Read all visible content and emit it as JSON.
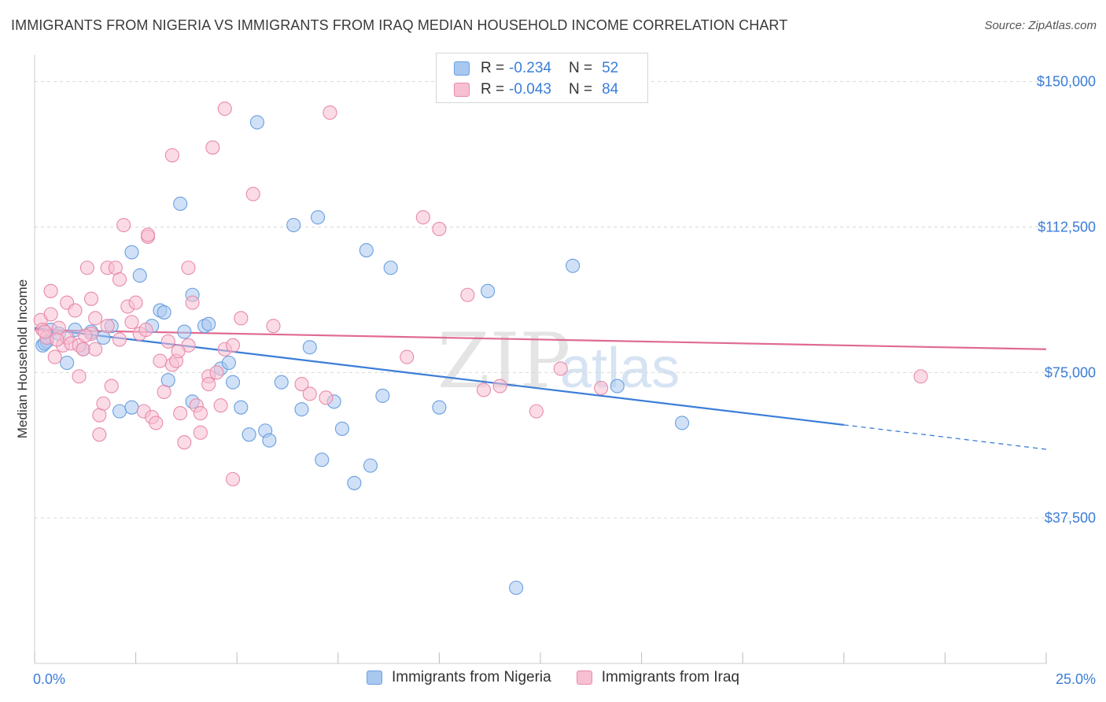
{
  "title": "IMMIGRANTS FROM NIGERIA VS IMMIGRANTS FROM IRAQ MEDIAN HOUSEHOLD INCOME CORRELATION CHART",
  "source": "Source: ZipAtlas.com",
  "watermark": {
    "zip": "ZIP",
    "atlas": "atlas"
  },
  "legend": {
    "r_label": "R =",
    "n_label": "N =",
    "rows": [
      {
        "r": "-0.234",
        "n": "52",
        "color": "#a9c8f0",
        "border": "#6a9fe0"
      },
      {
        "r": "-0.043",
        "n": "84",
        "color": "#f7bfd2",
        "border": "#e88aab"
      }
    ]
  },
  "chart_data": {
    "type": "scatter",
    "xlabel": "",
    "ylabel": "Median Household Income",
    "xlim": [
      0,
      25
    ],
    "ylim": [
      0,
      155000
    ],
    "x_tick_labels": [
      "0.0%",
      "25.0%"
    ],
    "y_ticks": [
      37500,
      75000,
      112500,
      150000
    ],
    "y_tick_labels": [
      "$37,500",
      "$75,000",
      "$112,500",
      "$150,000"
    ],
    "series": [
      {
        "name": "Immigrants from Nigeria",
        "color": "#6a9fe0",
        "fill": "#a9c8f0",
        "trend": {
          "x0": 0,
          "y0": 86500,
          "x1": 20,
          "y1": 61500,
          "dash_to_x": 25,
          "dash_to_y": 55200
        },
        "points": [
          [
            0.2,
            82000
          ],
          [
            0.3,
            83000
          ],
          [
            0.4,
            86000
          ],
          [
            0.6,
            85000
          ],
          [
            0.8,
            77500
          ],
          [
            1.0,
            86000
          ],
          [
            1.2,
            81000
          ],
          [
            1.4,
            85500
          ],
          [
            1.7,
            84000
          ],
          [
            1.9,
            87000
          ],
          [
            2.1,
            65000
          ],
          [
            2.4,
            106000
          ],
          [
            2.6,
            100000
          ],
          [
            2.4,
            66000
          ],
          [
            2.9,
            87000
          ],
          [
            3.1,
            91000
          ],
          [
            3.2,
            90500
          ],
          [
            3.3,
            73000
          ],
          [
            3.6,
            118500
          ],
          [
            3.7,
            85500
          ],
          [
            3.9,
            67500
          ],
          [
            3.9,
            95000
          ],
          [
            4.2,
            87000
          ],
          [
            4.3,
            87500
          ],
          [
            4.6,
            76000
          ],
          [
            4.8,
            77500
          ],
          [
            4.9,
            72500
          ],
          [
            5.1,
            66000
          ],
          [
            5.3,
            59000
          ],
          [
            5.5,
            139500
          ],
          [
            5.7,
            60000
          ],
          [
            5.8,
            57500
          ],
          [
            6.1,
            72500
          ],
          [
            6.4,
            113000
          ],
          [
            6.6,
            65500
          ],
          [
            6.8,
            81500
          ],
          [
            7.0,
            115000
          ],
          [
            7.1,
            52500
          ],
          [
            7.4,
            67500
          ],
          [
            7.6,
            60500
          ],
          [
            7.9,
            46500
          ],
          [
            8.2,
            106500
          ],
          [
            8.3,
            51000
          ],
          [
            8.6,
            69000
          ],
          [
            8.8,
            102000
          ],
          [
            10.0,
            66000
          ],
          [
            11.2,
            96000
          ],
          [
            11.9,
            19500
          ],
          [
            13.3,
            102500
          ],
          [
            14.4,
            71500
          ],
          [
            16.0,
            62000
          ],
          [
            0.25,
            82500
          ]
        ]
      },
      {
        "name": "Immigrants from Iraq",
        "color": "#e88aab",
        "fill": "#f7bfd2",
        "trend": {
          "x0": 0,
          "y0": 86000,
          "x1": 25,
          "y1": 81000
        },
        "points": [
          [
            0.15,
            88500
          ],
          [
            0.2,
            86000
          ],
          [
            0.3,
            84000
          ],
          [
            0.4,
            90000
          ],
          [
            0.4,
            96000
          ],
          [
            0.5,
            79000
          ],
          [
            0.6,
            86500
          ],
          [
            0.7,
            82000
          ],
          [
            0.8,
            84000
          ],
          [
            0.8,
            93000
          ],
          [
            0.9,
            82500
          ],
          [
            1.0,
            91000
          ],
          [
            1.1,
            82000
          ],
          [
            1.1,
            74000
          ],
          [
            1.2,
            81000
          ],
          [
            1.3,
            102000
          ],
          [
            1.4,
            85000
          ],
          [
            1.4,
            94000
          ],
          [
            1.5,
            89000
          ],
          [
            1.5,
            81000
          ],
          [
            1.6,
            64000
          ],
          [
            1.6,
            59000
          ],
          [
            1.7,
            67000
          ],
          [
            1.8,
            87000
          ],
          [
            1.8,
            102000
          ],
          [
            1.9,
            71500
          ],
          [
            2.0,
            102000
          ],
          [
            2.1,
            83500
          ],
          [
            2.1,
            99000
          ],
          [
            2.2,
            113000
          ],
          [
            2.3,
            92000
          ],
          [
            2.4,
            88000
          ],
          [
            2.5,
            93000
          ],
          [
            2.6,
            85000
          ],
          [
            2.7,
            65000
          ],
          [
            2.8,
            110000
          ],
          [
            2.8,
            110500
          ],
          [
            2.9,
            63500
          ],
          [
            3.0,
            62000
          ],
          [
            3.1,
            78000
          ],
          [
            3.2,
            70000
          ],
          [
            3.3,
            83000
          ],
          [
            3.4,
            77000
          ],
          [
            3.4,
            131000
          ],
          [
            3.5,
            78000
          ],
          [
            3.6,
            64500
          ],
          [
            3.7,
            57000
          ],
          [
            3.8,
            82000
          ],
          [
            3.8,
            102000
          ],
          [
            3.9,
            93000
          ],
          [
            4.0,
            66500
          ],
          [
            4.1,
            64500
          ],
          [
            4.1,
            59500
          ],
          [
            4.3,
            74000
          ],
          [
            4.3,
            72000
          ],
          [
            4.4,
            133000
          ],
          [
            4.5,
            75000
          ],
          [
            4.6,
            66500
          ],
          [
            4.7,
            143000
          ],
          [
            4.7,
            81000
          ],
          [
            4.9,
            82000
          ],
          [
            4.9,
            47500
          ],
          [
            5.1,
            89000
          ],
          [
            5.4,
            121000
          ],
          [
            5.9,
            87000
          ],
          [
            6.6,
            72000
          ],
          [
            6.8,
            69500
          ],
          [
            7.2,
            68500
          ],
          [
            7.3,
            142000
          ],
          [
            9.2,
            79000
          ],
          [
            9.6,
            115000
          ],
          [
            10.0,
            112000
          ],
          [
            10.7,
            95000
          ],
          [
            11.1,
            70500
          ],
          [
            11.5,
            71500
          ],
          [
            12.4,
            65000
          ],
          [
            13.0,
            76000
          ],
          [
            14.0,
            71000
          ],
          [
            21.9,
            74000
          ],
          [
            0.25,
            85500
          ],
          [
            0.55,
            83500
          ],
          [
            1.25,
            84500
          ],
          [
            2.75,
            86000
          ],
          [
            3.55,
            80500
          ]
        ]
      }
    ]
  }
}
